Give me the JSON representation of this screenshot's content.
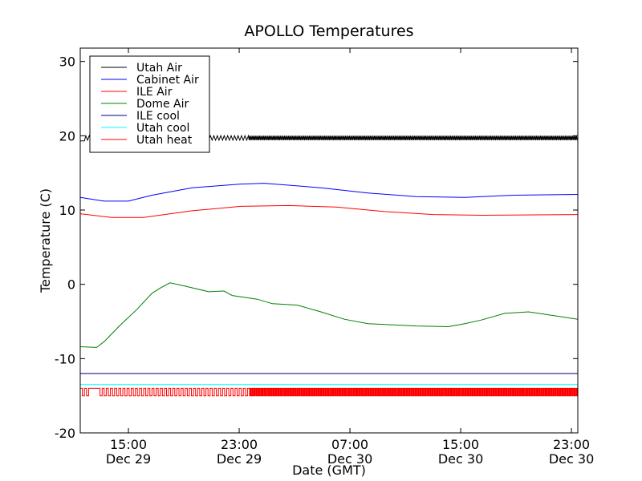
{
  "chart_data": {
    "type": "line",
    "title": "APOLLO Temperatures",
    "xlabel": "Date (GMT)",
    "ylabel": "Temperature (C)",
    "xlim_hours_from_dec29": [
      11.52,
      47.46
    ],
    "ylim": [
      -20,
      31.8
    ],
    "yticks": [
      30,
      20,
      10,
      0,
      -10,
      -20
    ],
    "ytick_labels": [
      "30",
      "20",
      "10",
      "0",
      "-10",
      "-20"
    ],
    "xticks": [
      {
        "hour": 15,
        "time": "15:00",
        "date": "Dec 29"
      },
      {
        "hour": 23,
        "time": "23:00",
        "date": "Dec 29"
      },
      {
        "hour": 31,
        "time": "07:00",
        "date": "Dec 30"
      },
      {
        "hour": 39,
        "time": "15:00",
        "date": "Dec 30"
      },
      {
        "hour": 47,
        "time": "23:00",
        "date": "Dec 30"
      }
    ],
    "legend_position": "upper-left",
    "grid": false,
    "series": [
      {
        "name": "Utah Air",
        "color": "#000000",
        "kind": "oscillating",
        "mean": 19.7,
        "amplitude": 0.3,
        "period_sparse_h": 0.25,
        "period_dense_h": 0.1,
        "dense_from_h": 23.6
      },
      {
        "name": "Cabinet Air",
        "color": "#0000ff",
        "x": [
          11.52,
          13.26,
          15.0,
          16.7,
          19.6,
          23.1,
          24.8,
          28.9,
          32.3,
          35.8,
          39.3,
          42.8,
          47.46
        ],
        "y": [
          11.7,
          11.2,
          11.2,
          12.0,
          13.0,
          13.5,
          13.6,
          13.0,
          12.3,
          11.8,
          11.7,
          12.0,
          12.1
        ]
      },
      {
        "name": "ILE Air",
        "color": "#ff0000",
        "x": [
          11.52,
          13.8,
          16.1,
          19.6,
          23.1,
          26.6,
          30.0,
          33.5,
          37.0,
          40.5,
          47.46
        ],
        "y": [
          9.5,
          9.0,
          9.0,
          9.9,
          10.5,
          10.6,
          10.4,
          9.8,
          9.4,
          9.3,
          9.4
        ]
      },
      {
        "name": "Dome Air",
        "color": "#008000",
        "x": [
          11.52,
          12.7,
          13.26,
          14.4,
          15.6,
          16.7,
          17.3,
          18.0,
          19.0,
          20.8,
          21.9,
          22.5,
          24.3,
          25.4,
          27.2,
          28.9,
          30.6,
          32.3,
          35.8,
          38.1,
          39.3,
          40.5,
          42.2,
          43.9,
          45.7,
          47.46
        ],
        "y": [
          -8.4,
          -8.5,
          -7.7,
          -5.5,
          -3.4,
          -1.2,
          -0.5,
          0.2,
          -0.2,
          -1.0,
          -0.9,
          -1.5,
          -2.0,
          -2.6,
          -2.8,
          -3.7,
          -4.7,
          -5.3,
          -5.6,
          -5.7,
          -5.3,
          -4.8,
          -3.9,
          -3.7,
          -4.2,
          -4.7
        ]
      },
      {
        "name": "ILE cool",
        "color": "#000080",
        "kind": "constant",
        "value": -12
      },
      {
        "name": "Utah cool",
        "color": "#00ffff",
        "kind": "constant",
        "value": -13.5
      },
      {
        "name": "Utah heat",
        "color": "#ff0000",
        "kind": "square",
        "high": -14,
        "low": -15,
        "period_sparse_h": 0.3,
        "period_dense_h": 0.12,
        "dense_from_h": 23.6,
        "gap": [
          12.0,
          12.8
        ]
      }
    ]
  }
}
